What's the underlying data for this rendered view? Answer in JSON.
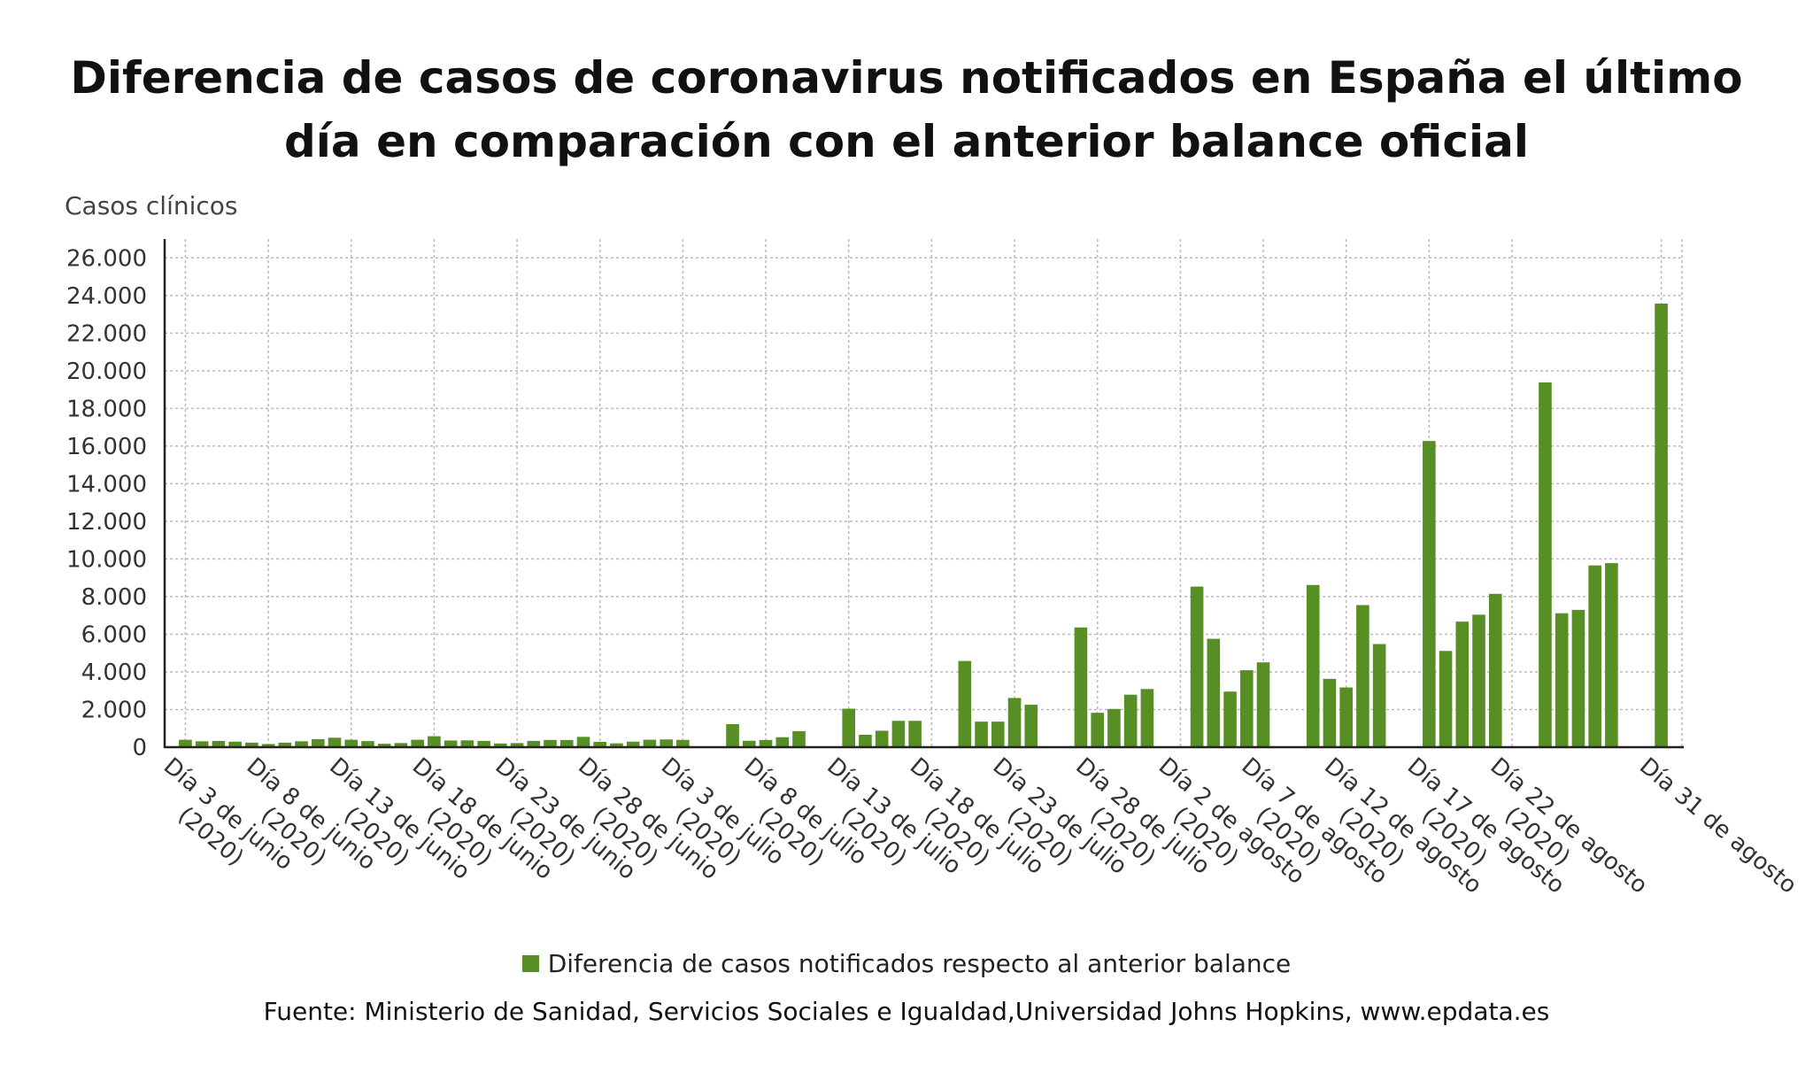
{
  "title": {
    "line1": "Diferencia de casos de coronavirus notificados en España el último",
    "line2": "día en comparación con el anterior balance oficial"
  },
  "chart_data": {
    "type": "bar",
    "ylabel": "Casos clínicos",
    "ylim": [
      0,
      27000
    ],
    "yticks": [
      0,
      2000,
      4000,
      6000,
      8000,
      10000,
      12000,
      14000,
      16000,
      18000,
      20000,
      22000,
      24000,
      26000
    ],
    "ytick_labels": [
      "0",
      "2.000",
      "4.000",
      "6.000",
      "8.000",
      "10.000",
      "12.000",
      "14.000",
      "16.000",
      "18.000",
      "20.000",
      "22.000",
      "24.000",
      "26.000"
    ],
    "grid": true,
    "color": "#578f25",
    "categories": [
      "3 Jun",
      "4 Jun",
      "5 Jun",
      "6 Jun",
      "7 Jun",
      "8 Jun",
      "9 Jun",
      "10 Jun",
      "11 Jun",
      "12 Jun",
      "13 Jun",
      "14 Jun",
      "15 Jun",
      "16 Jun",
      "17 Jun",
      "18 Jun",
      "19 Jun",
      "20 Jun",
      "21 Jun",
      "22 Jun",
      "23 Jun",
      "24 Jun",
      "25 Jun",
      "26 Jun",
      "27 Jun",
      "28 Jun",
      "29 Jun",
      "30 Jun",
      "1 Jul",
      "2 Jul",
      "3 Jul",
      "4 Jul",
      "5 Jul",
      "6 Jul",
      "7 Jul",
      "8 Jul",
      "9 Jul",
      "10 Jul",
      "11 Jul",
      "12 Jul",
      "13 Jul",
      "14 Jul",
      "15 Jul",
      "16 Jul",
      "17 Jul",
      "18 Jul",
      "19 Jul",
      "20 Jul",
      "21 Jul",
      "22 Jul",
      "23 Jul",
      "24 Jul",
      "25 Jul",
      "26 Jul",
      "27 Jul",
      "28 Jul",
      "29 Jul",
      "30 Jul",
      "31 Jul",
      "1 Ago",
      "2 Ago",
      "3 Ago",
      "4 Ago",
      "5 Ago",
      "6 Ago",
      "7 Ago",
      "8 Ago",
      "9 Ago",
      "10 Ago",
      "11 Ago",
      "12 Ago",
      "13 Ago",
      "14 Ago",
      "15 Ago",
      "16 Ago",
      "17 Ago",
      "18 Ago",
      "19 Ago",
      "20 Ago",
      "21 Ago",
      "22 Ago",
      "23 Ago",
      "24 Ago",
      "25 Ago",
      "26 Ago",
      "27 Ago",
      "28 Ago",
      "29 Ago",
      "30 Ago",
      "31 Ago"
    ],
    "series": [
      {
        "name": "Diferencia de casos notificados respecto al anterior balance",
        "values": [
          394,
          313,
          332,
          293,
          240,
          167,
          240,
          314,
          427,
          502,
          397,
          323,
          181,
          219,
          396,
          583,
          355,
          363,
          334,
          197,
          217,
          334,
          387,
          383,
          548,
          283,
          205,
          294,
          396,
          411,
          388,
          0,
          0,
          1223,
          341,
          383,
          530,
          852,
          0,
          0,
          2045,
          660,
          875,
          1400,
          1400,
          0,
          0,
          4581,
          1357,
          1357,
          2615,
          2255,
          0,
          0,
          6361,
          1828,
          2031,
          2789,
          3092,
          0,
          0,
          8532,
          5760,
          2953,
          4088,
          4507,
          0,
          0,
          8618,
          3632,
          3172,
          7550,
          5479,
          0,
          0,
          16269,
          5114,
          6671,
          7039,
          8148,
          0,
          0,
          19382,
          7117,
          7296,
          9658,
          9779,
          0,
          0,
          23572
        ]
      }
    ],
    "xtick_labels": [
      {
        "index": 0,
        "line1": "Día 3 de junio",
        "line2": "(2020)"
      },
      {
        "index": 5,
        "line1": "Día 8 de junio",
        "line2": "(2020)"
      },
      {
        "index": 10,
        "line1": "Día 13 de junio",
        "line2": "(2020)"
      },
      {
        "index": 15,
        "line1": "Día 18 de junio",
        "line2": "(2020)"
      },
      {
        "index": 20,
        "line1": "Día 23 de junio",
        "line2": "(2020)"
      },
      {
        "index": 25,
        "line1": "Día 28 de junio",
        "line2": "(2020)"
      },
      {
        "index": 30,
        "line1": "Día 3 de julio",
        "line2": "(2020)"
      },
      {
        "index": 35,
        "line1": "Día 8 de julio",
        "line2": "(2020)"
      },
      {
        "index": 40,
        "line1": "Día 13 de julio",
        "line2": "(2020)"
      },
      {
        "index": 45,
        "line1": "Día 18 de julio",
        "line2": "(2020)"
      },
      {
        "index": 50,
        "line1": "Día 23 de julio",
        "line2": "(2020)"
      },
      {
        "index": 55,
        "line1": "Día 28 de julio",
        "line2": "(2020)"
      },
      {
        "index": 60,
        "line1": "Día 2 de agosto",
        "line2": "(2020)"
      },
      {
        "index": 65,
        "line1": "Día 7 de agosto",
        "line2": "(2020)"
      },
      {
        "index": 70,
        "line1": "Día 12 de agosto",
        "line2": "(2020)"
      },
      {
        "index": 75,
        "line1": "Día 17 de agosto",
        "line2": "(2020)"
      },
      {
        "index": 80,
        "line1": "Día 22 de agosto",
        "line2": "(2020)"
      },
      {
        "index": 89,
        "line1": "Día 31 de agosto",
        "line2": ""
      }
    ]
  },
  "legend": {
    "label": "Diferencia de casos notificados respecto al anterior balance",
    "color": "#578f25"
  },
  "source": "Fuente: Ministerio de Sanidad, Servicios Sociales e Igualdad,Universidad Johns Hopkins, www.epdata.es"
}
